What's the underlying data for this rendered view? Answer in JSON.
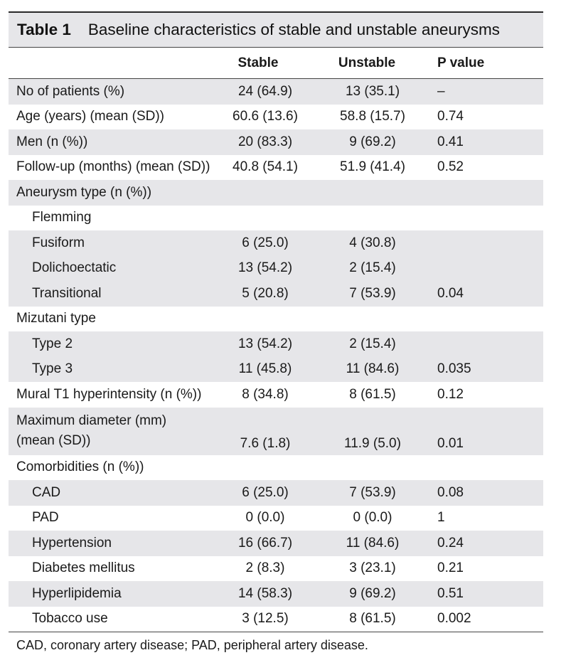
{
  "table": {
    "label": "Table 1",
    "title": "Baseline characteristics of stable and unstable aneurysms",
    "headers": [
      "",
      "Stable",
      "Unstable",
      "P value"
    ],
    "rows": [
      {
        "label": "No of patients (%)",
        "stable": "24 (64.9)",
        "unstable": "13 (35.1)",
        "p": "–",
        "indent": false,
        "shade": true
      },
      {
        "label": "Age (years) (mean (SD))",
        "stable": "60.6 (13.6)",
        "unstable": "58.8 (15.7)",
        "p": "0.74",
        "indent": false,
        "shade": false
      },
      {
        "label": "Men (n (%))",
        "stable": "20 (83.3)",
        "unstable": "9 (69.2)",
        "p": "0.41",
        "indent": false,
        "shade": true
      },
      {
        "label": "Follow-up (months) (mean (SD))",
        "stable": "40.8 (54.1)",
        "unstable": "51.9 (41.4)",
        "p": "0.52",
        "indent": false,
        "shade": false
      },
      {
        "label": "Aneurysm type (n (%))",
        "stable": "",
        "unstable": "",
        "p": "",
        "indent": false,
        "shade": true
      },
      {
        "label": "Flemming",
        "stable": "",
        "unstable": "",
        "p": "",
        "indent": true,
        "shade": false
      },
      {
        "label": "Fusiform",
        "stable": "6 (25.0)",
        "unstable": "4 (30.8)",
        "p": "",
        "indent": true,
        "shade": true
      },
      {
        "label": "Dolichoectatic",
        "stable": "13 (54.2)",
        "unstable": "2 (15.4)",
        "p": "",
        "indent": true,
        "shade": true
      },
      {
        "label": "Transitional",
        "stable": "5 (20.8)",
        "unstable": "7 (53.9)",
        "p": "0.04",
        "indent": true,
        "shade": true
      },
      {
        "label": "Mizutani type",
        "stable": "",
        "unstable": "",
        "p": "",
        "indent": false,
        "shade": false
      },
      {
        "label": "Type 2",
        "stable": "13 (54.2)",
        "unstable": "2 (15.4)",
        "p": "",
        "indent": true,
        "shade": true
      },
      {
        "label": "Type 3",
        "stable": "11 (45.8)",
        "unstable": "11 (84.6)",
        "p": "0.035",
        "indent": true,
        "shade": true
      },
      {
        "label": "Mural T1 hyperintensity (n (%))",
        "stable": "8 (34.8)",
        "unstable": "8 (61.5)",
        "p": "0.12",
        "indent": false,
        "shade": false
      },
      {
        "label": "Maximum diameter  (mm)",
        "label2": "(mean (SD))",
        "stable": "7.6 (1.8)",
        "unstable": "11.9 (5.0)",
        "p": "0.01",
        "indent": false,
        "shade": true
      },
      {
        "label": "Comorbidities (n (%))",
        "stable": "",
        "unstable": "",
        "p": "",
        "indent": false,
        "shade": false
      },
      {
        "label": "CAD",
        "stable": "6 (25.0)",
        "unstable": "7 (53.9)",
        "p": "0.08",
        "indent": true,
        "shade": true
      },
      {
        "label": "PAD",
        "stable": "0 (0.0)",
        "unstable": "0 (0.0)",
        "p": "1",
        "indent": true,
        "shade": false
      },
      {
        "label": "Hypertension",
        "stable": "16 (66.7)",
        "unstable": "11 (84.6)",
        "p": "0.24",
        "indent": true,
        "shade": true
      },
      {
        "label": "Diabetes mellitus",
        "stable": "2 (8.3)",
        "unstable": "3 (23.1)",
        "p": "0.21",
        "indent": true,
        "shade": false
      },
      {
        "label": "Hyperlipidemia",
        "stable": "14 (58.3)",
        "unstable": "9 (69.2)",
        "p": "0.51",
        "indent": true,
        "shade": true
      },
      {
        "label": "Tobacco use",
        "stable": "3 (12.5)",
        "unstable": "8 (61.5)",
        "p": "0.002",
        "indent": true,
        "shade": false
      }
    ],
    "footnote": "CAD, coronary artery disease; PAD, peripheral artery disease."
  }
}
